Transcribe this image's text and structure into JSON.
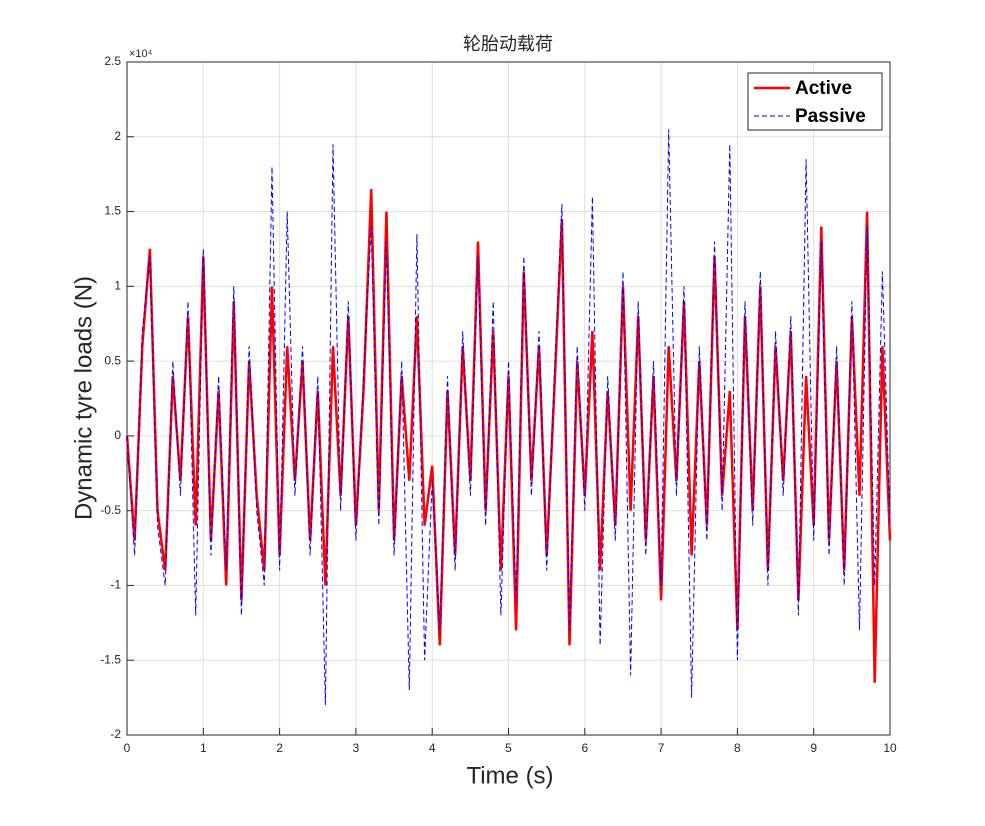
{
  "chart_data": {
    "type": "line",
    "title": "轮胎动载荷",
    "xlabel": "Time (s)",
    "ylabel": "Dynamic tyre loads (N)",
    "y_exponent_label": "×10⁴",
    "grid": true,
    "legend": "northeast",
    "xlim": [
      0,
      10
    ],
    "xticks": [
      0,
      1,
      2,
      3,
      4,
      5,
      6,
      7,
      8,
      9,
      10
    ],
    "ylim": [
      -20000,
      25000
    ],
    "yticks": [
      {
        "value": -20000,
        "label": "-2"
      },
      {
        "value": -15000,
        "label": "-1.5"
      },
      {
        "value": -10000,
        "label": "-1"
      },
      {
        "value": -5000,
        "label": "-0.5"
      },
      {
        "value": 0,
        "label": "0"
      },
      {
        "value": 5000,
        "label": "0.5"
      },
      {
        "value": 10000,
        "label": "1"
      },
      {
        "value": 15000,
        "label": "1.5"
      },
      {
        "value": 20000,
        "label": "2"
      },
      {
        "value": 25000,
        "label": "2.5"
      }
    ],
    "x": [
      0,
      0.1,
      0.2,
      0.3,
      0.4,
      0.5,
      0.6,
      0.7,
      0.8,
      0.9,
      1,
      1.1,
      1.2,
      1.3,
      1.4,
      1.5,
      1.6,
      1.7,
      1.8,
      1.9,
      2,
      2.1,
      2.2,
      2.3,
      2.4,
      2.5,
      2.6,
      2.7,
      2.8,
      2.9,
      3,
      3.1,
      3.2,
      3.3,
      3.4,
      3.5,
      3.6,
      3.7,
      3.8,
      3.9,
      4,
      4.1,
      4.2,
      4.3,
      4.4,
      4.5,
      4.6,
      4.7,
      4.8,
      4.9,
      5,
      5.1,
      5.2,
      5.3,
      5.4,
      5.5,
      5.6,
      5.7,
      5.8,
      5.9,
      6,
      6.1,
      6.2,
      6.3,
      6.4,
      6.5,
      6.6,
      6.7,
      6.8,
      6.9,
      7,
      7.1,
      7.2,
      7.3,
      7.4,
      7.5,
      7.6,
      7.7,
      7.8,
      7.9,
      8,
      8.1,
      8.2,
      8.3,
      8.4,
      8.5,
      8.6,
      8.7,
      8.8,
      8.9,
      9,
      9.1,
      9.2,
      9.3,
      9.4,
      9.5,
      9.6,
      9.7,
      9.8,
      9.9,
      10
    ],
    "series": [
      {
        "name": "Active",
        "color": "#ff0000",
        "dash": "solid",
        "values": [
          0,
          -7000,
          6000,
          12500,
          -5000,
          -9000,
          4000,
          -3000,
          8000,
          -6000,
          12000,
          -7000,
          3000,
          -10000,
          9000,
          -11000,
          5000,
          -4000,
          -9000,
          10000,
          -8000,
          6000,
          -3000,
          5000,
          -7000,
          3000,
          -10000,
          6000,
          -4000,
          8000,
          -6000,
          3000,
          16500,
          -5000,
          15000,
          -7000,
          4000,
          -3000,
          8000,
          -6000,
          -2000,
          -14000,
          3000,
          -8000,
          6000,
          -3000,
          13000,
          -5000,
          7000,
          -9000,
          4000,
          -13000,
          11000,
          -3000,
          6000,
          -8000,
          3000,
          14500,
          -14000,
          5000,
          -4000,
          7000,
          -9000,
          3000,
          -6000,
          10000,
          -5000,
          8000,
          -7000,
          4000,
          -11000,
          6000,
          -3000,
          9000,
          -8000,
          5000,
          -6000,
          12000,
          -4000,
          3000,
          -13000,
          8000,
          -5000,
          10000,
          -9000,
          6000,
          -3000,
          7000,
          -11000,
          4000,
          -6000,
          14000,
          -7000,
          5000,
          -9000,
          8000,
          -4000,
          15000,
          -16500,
          6000,
          -7000
        ]
      },
      {
        "name": "Passive",
        "color": "#0000ff",
        "dash": "dashed",
        "values": [
          0,
          -8000,
          7000,
          12000,
          -6000,
          -10000,
          5000,
          -4000,
          9000,
          -12000,
          12500,
          -8000,
          4000,
          -9000,
          10000,
          -12000,
          6000,
          -5000,
          -10000,
          18000,
          -9000,
          15000,
          -4000,
          6000,
          -8000,
          4000,
          -18000,
          19500,
          -5000,
          9000,
          -7000,
          4000,
          14000,
          -6000,
          13000,
          -8000,
          5000,
          -17000,
          13500,
          -15000,
          -3000,
          -13000,
          4000,
          -9000,
          7000,
          -4000,
          12000,
          -6000,
          9000,
          -12000,
          5000,
          -11000,
          12000,
          -4000,
          7000,
          -9000,
          4000,
          15500,
          -13000,
          6000,
          -5000,
          16000,
          -14000,
          4000,
          -7000,
          11000,
          -16000,
          9000,
          -8000,
          5000,
          -10000,
          20500,
          -4000,
          10000,
          -17500,
          6000,
          -7000,
          13000,
          -5000,
          19500,
          -15000,
          9000,
          -6000,
          11000,
          -10000,
          7000,
          -4000,
          8000,
          -12000,
          18500,
          -7000,
          13000,
          -8000,
          6000,
          -10000,
          9000,
          -13000,
          14000,
          -10000,
          11000,
          -6000
        ]
      }
    ]
  }
}
